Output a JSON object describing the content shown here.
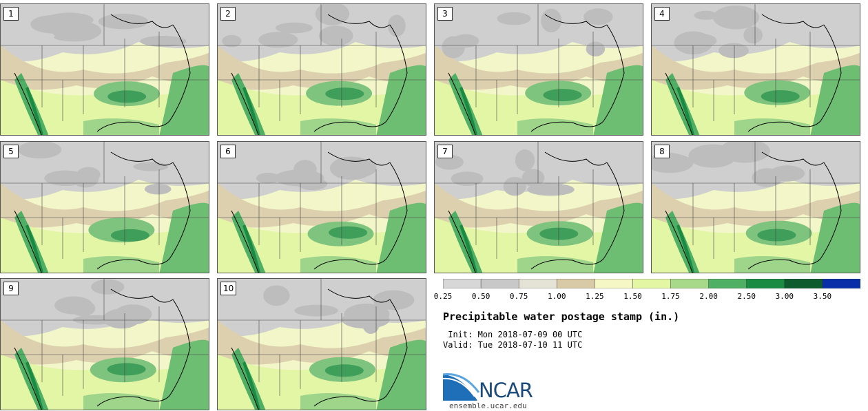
{
  "panels": [
    {
      "label": "1"
    },
    {
      "label": "2"
    },
    {
      "label": "3"
    },
    {
      "label": "4"
    },
    {
      "label": "5"
    },
    {
      "label": "6"
    },
    {
      "label": "7"
    },
    {
      "label": "8"
    },
    {
      "label": "9"
    },
    {
      "label": "10"
    }
  ],
  "legend": {
    "colors": [
      "#d7d7d7",
      "#c8c8c8",
      "#e5e3d6",
      "#d8caa7",
      "#f5f8c4",
      "#e2f6a4",
      "#a8d98a",
      "#4fb065",
      "#1b8b44",
      "#0c5a2e",
      "#0a2ea8"
    ],
    "labels": [
      "0.25",
      "0.50",
      "0.75",
      "1.00",
      "1.25",
      "1.50",
      "1.75",
      "2.00",
      "2.50",
      "3.00",
      "3.50"
    ]
  },
  "title": "Precipitable water postage stamp (in.)",
  "init": " Init: Mon 2018-07-09 00 UTC",
  "valid": "Valid: Tue 2018-07-10 11 UTC",
  "logo": {
    "text": "NCAR",
    "site": "ensemble.ucar.edu",
    "primary_color": "#1a4a7a"
  }
}
